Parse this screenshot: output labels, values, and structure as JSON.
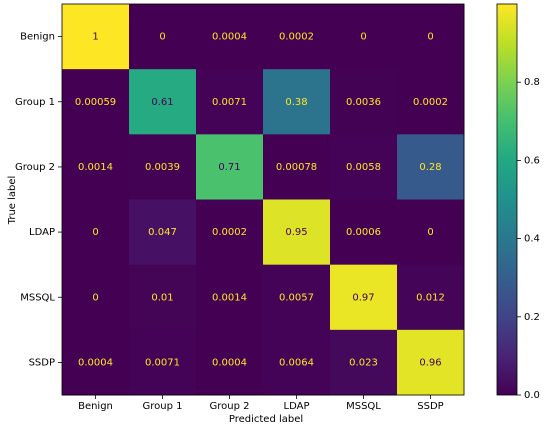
{
  "chart_data": {
    "type": "heatmap",
    "x_categories": [
      "Benign",
      "Group 1",
      "Group 2",
      "LDAP",
      "MSSQL",
      "SSDP"
    ],
    "y_categories": [
      "Benign",
      "Group 1",
      "Group 2",
      "LDAP",
      "MSSQL",
      "SSDP"
    ],
    "z": [
      [
        1,
        0,
        0.0004,
        0.0002,
        0,
        0
      ],
      [
        0.00059,
        0.61,
        0.0071,
        0.38,
        0.0036,
        0.0002
      ],
      [
        0.0014,
        0.0039,
        0.71,
        0.00078,
        0.0058,
        0.28
      ],
      [
        0,
        0.047,
        0.0002,
        0.95,
        0.0006,
        0
      ],
      [
        0,
        0.01,
        0.0014,
        0.0057,
        0.97,
        0.012
      ],
      [
        0.0004,
        0.0071,
        0.0004,
        0.0064,
        0.023,
        0.96
      ]
    ],
    "xlabel": "Predicted label",
    "ylabel": "True label",
    "colormap": "viridis",
    "clim": [
      0,
      1
    ],
    "cticks": [
      {
        "value": 0,
        "label": "0.0"
      },
      {
        "value": 0.2,
        "label": "0.2"
      },
      {
        "value": 0.4,
        "label": "0.4"
      },
      {
        "value": 0.6,
        "label": "0.6"
      },
      {
        "value": 0.8,
        "label": "0.8"
      }
    ]
  }
}
